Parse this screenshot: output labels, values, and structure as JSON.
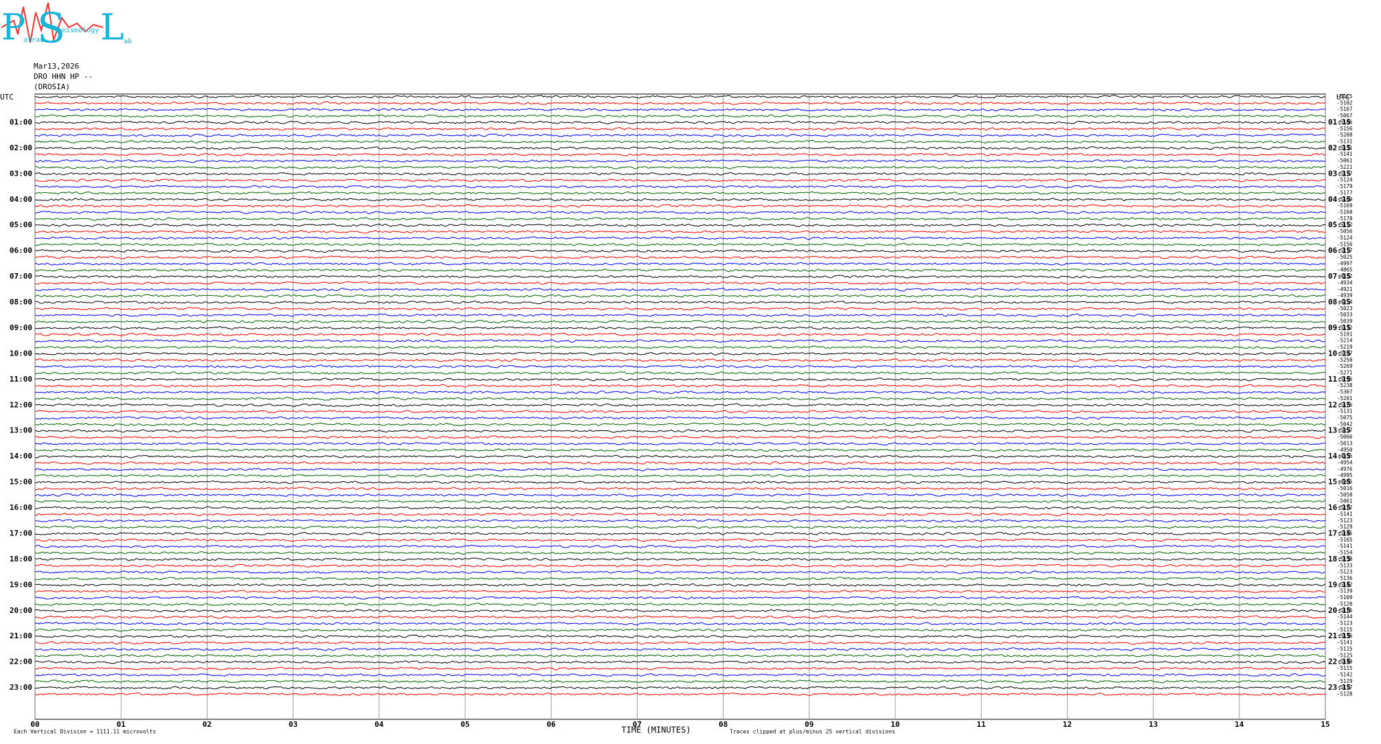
{
  "logo": {
    "letters": [
      "P",
      "S",
      "L"
    ],
    "words": [
      "atras",
      "eismology",
      "ab"
    ]
  },
  "header": {
    "date": "Mar13,2026",
    "station": "DRO HHN HP --",
    "site": "(DROSIA)"
  },
  "utc_left": "UTC",
  "utc_right": "UTC",
  "left_labels": [
    "01:00",
    "02:00",
    "03:00",
    "04:00",
    "05:00",
    "06:00",
    "07:00",
    "08:00",
    "09:00",
    "10:00",
    "11:00",
    "12:00",
    "13:00",
    "14:00",
    "15:00",
    "16:00",
    "17:00",
    "18:00",
    "19:00",
    "20:00",
    "21:00",
    "22:00",
    "23:00"
  ],
  "right_labels": [
    "01:15",
    "02:15",
    "03:15",
    "04:15",
    "05:15",
    "06:15",
    "07:15",
    "08:15",
    "09:15",
    "10:15",
    "11:15",
    "12:15",
    "13:15",
    "14:15",
    "15:15",
    "16:15",
    "17:15",
    "18:15",
    "19:15",
    "20:15",
    "21:15",
    "22:15",
    "23:15"
  ],
  "row_values": [
    "-5115",
    "-5102",
    "-5167",
    "-5067",
    "-5186",
    "-5156",
    "-5208",
    "-5131",
    "-5131",
    "-5141",
    "-5061",
    "-5221",
    "-5117",
    "-5124",
    "-5179",
    "-5177",
    "-5169",
    "-5169",
    "-5160",
    "-5178",
    "-5112",
    "-5056",
    "-5124",
    "-5156",
    "-5117",
    "-5025",
    "-4997",
    "-4865",
    "-4932",
    "-4934",
    "-4921",
    "-4939",
    "-4954",
    "-5023",
    "-5033",
    "-5039",
    "-5132",
    "-5191",
    "-5214",
    "-5219",
    "-5287",
    "-5250",
    "-5269",
    "-5271",
    "-5196",
    "-5238",
    "-5307",
    "-5201",
    "-5176",
    "-5131",
    "-5075",
    "-5042",
    "-5057",
    "-5066",
    "-5013",
    "-4950",
    "-4935",
    "-4954",
    "-4976",
    "-4995",
    "-4985",
    "-5016",
    "-5058",
    "-5061",
    "-5122",
    "-5141",
    "-5123",
    "-5129",
    "-5145",
    "-5165",
    "-5141",
    "-5154",
    "-5138",
    "-5133",
    "-5123",
    "-5136",
    "-5142",
    "-5139",
    "-5109",
    "-5120",
    "-5126",
    "-5144",
    "-5123",
    "-5115",
    "-5136",
    "-5141",
    "-5115",
    "-5125",
    "-5140",
    "-5115",
    "-5142",
    "-5129",
    "-5117",
    "-5128"
  ],
  "xaxis": {
    "title": "TIME (MINUTES)",
    "ticks": [
      {
        "value": 0,
        "label": "00"
      },
      {
        "value": 1,
        "label": "01"
      },
      {
        "value": 2,
        "label": "02"
      },
      {
        "value": 3,
        "label": "03"
      },
      {
        "value": 4,
        "label": "04"
      },
      {
        "value": 5,
        "label": "05"
      },
      {
        "value": 6,
        "label": "06"
      },
      {
        "value": 7,
        "label": "07"
      },
      {
        "value": 8,
        "label": "08"
      },
      {
        "value": 9,
        "label": "09"
      },
      {
        "value": 10,
        "label": "10"
      },
      {
        "value": 11,
        "label": "11"
      },
      {
        "value": 12,
        "label": "12"
      },
      {
        "value": 13,
        "label": "13"
      },
      {
        "value": 14,
        "label": "14"
      },
      {
        "value": 15,
        "label": "15"
      }
    ]
  },
  "footer": {
    "scale_note": "Each Vertical Division = 1111.11 microvolts",
    "clip_note": "Traces clipped at plus/minus 25 vertical divisions"
  },
  "trace_colors": [
    "#000000",
    "#ff0000",
    "#0000ff",
    "#006400"
  ]
}
